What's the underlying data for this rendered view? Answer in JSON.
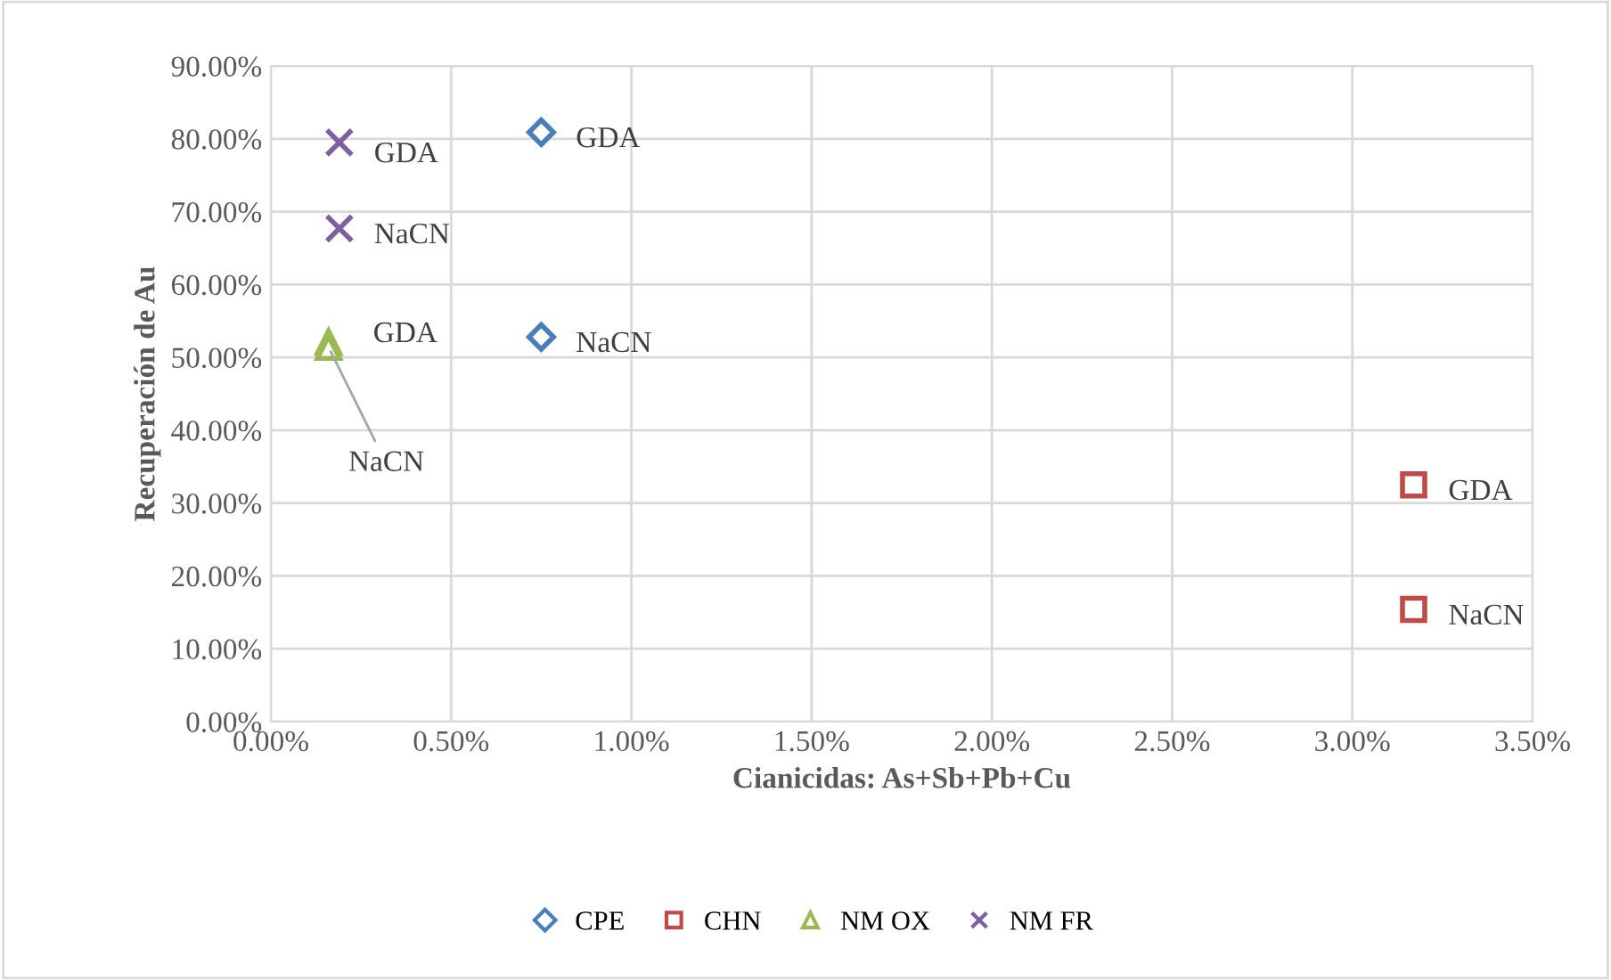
{
  "chart_data": {
    "type": "scatter",
    "xlabel": "Cianicidas: As+Sb+Pb+Cu",
    "ylabel": "Recuperación de Au",
    "series": [
      {
        "name": "CPE",
        "color": "#4a7ebb",
        "marker": "diamond",
        "x": [
          0.75,
          0.75
        ],
        "values": [
          80.9,
          52.8
        ]
      },
      {
        "name": "CHN",
        "color": "#be4b48",
        "marker": "square",
        "x": [
          3.17,
          3.17
        ],
        "values": [
          32.5,
          15.4
        ]
      },
      {
        "name": "NM OX",
        "color": "#98b954",
        "marker": "triangle",
        "x": [
          0.16,
          0.16
        ],
        "values": [
          52.1,
          51.4
        ]
      },
      {
        "name": "NM FR",
        "color": "#7d60a0",
        "marker": "cross",
        "x": [
          0.19,
          0.19
        ],
        "values": [
          79.5,
          67.7
        ]
      }
    ],
    "annotations": [
      {
        "text": "GDA",
        "x": 0.75,
        "y": 80.9
      },
      {
        "text": "NaCN",
        "x": 0.75,
        "y": 52.8
      },
      {
        "text": "GDA",
        "x": 3.17,
        "y": 32.5
      },
      {
        "text": "NaCN",
        "x": 3.17,
        "y": 15.4
      },
      {
        "text": "GDA",
        "x": 0.16,
        "y": 52.1
      },
      {
        "text": "NaCN",
        "x": 0.16,
        "y": 51.4
      },
      {
        "text": "GDA",
        "x": 0.19,
        "y": 79.5
      },
      {
        "text": "NaCN",
        "x": 0.19,
        "y": 67.7
      }
    ],
    "xlim": [
      0,
      3.5
    ],
    "ylim": [
      0,
      90
    ],
    "xticks": [
      {
        "value": 0,
        "label": "0.00%"
      },
      {
        "value": 0.5,
        "label": "0.50%"
      },
      {
        "value": 1,
        "label": "1.00%"
      },
      {
        "value": 1.5,
        "label": "1.50%"
      },
      {
        "value": 2,
        "label": "2.00%"
      },
      {
        "value": 2.5,
        "label": "2.50%"
      },
      {
        "value": 3,
        "label": "3.00%"
      },
      {
        "value": 3.5,
        "label": "3.50%"
      }
    ],
    "yticks": [
      {
        "value": 0,
        "label": "0.00%"
      },
      {
        "value": 10,
        "label": "10.00%"
      },
      {
        "value": 20,
        "label": "20.00%"
      },
      {
        "value": 30,
        "label": "30.00%"
      },
      {
        "value": 40,
        "label": "40.00%"
      },
      {
        "value": 50,
        "label": "50.00%"
      },
      {
        "value": 60,
        "label": "60.00%"
      },
      {
        "value": 70,
        "label": "70.00%"
      },
      {
        "value": 80,
        "label": "80.00%"
      },
      {
        "value": 90,
        "label": "90.00%"
      }
    ],
    "grid": true,
    "legend": "bottom"
  }
}
